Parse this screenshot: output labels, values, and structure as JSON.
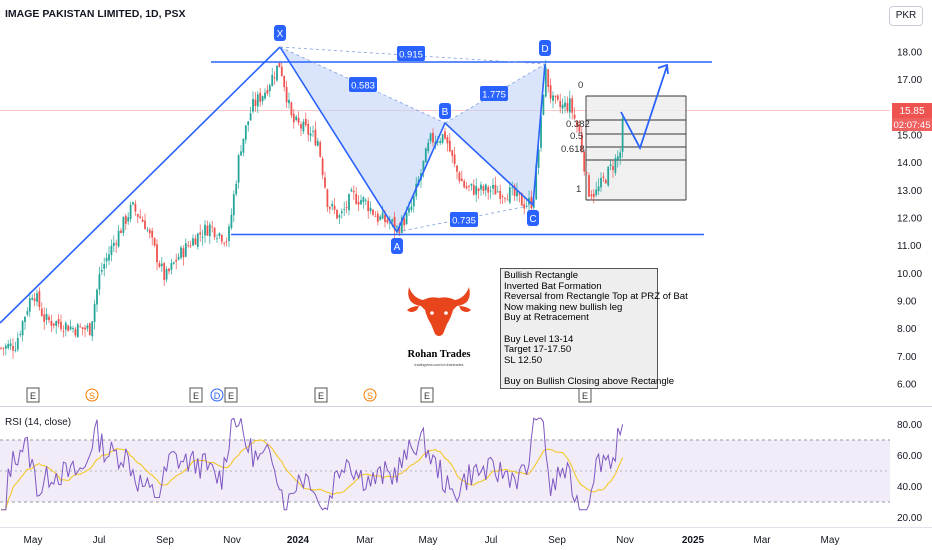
{
  "header": {
    "symbol_title": "IMAGE PAKISTAN LIMITED, 1D, PSX",
    "currency": "PKR"
  },
  "price_labels": {
    "last_price": "15.85",
    "countdown": "02:07:45"
  },
  "rsi_panel": {
    "label": "RSI (14, close)",
    "levels": [
      80,
      60,
      40,
      20
    ]
  },
  "chart_data": {
    "type": "candlestick",
    "y_axis_prices": [
      18.0,
      17.0,
      16.0,
      15.0,
      14.0,
      13.0,
      12.0,
      11.0,
      10.0,
      9.0,
      8.0,
      7.0,
      6.0
    ],
    "y_axis_labels": [
      "18.00",
      "17.00",
      "16.00",
      "15.00",
      "14.00",
      "13.00",
      "12.00",
      "11.00",
      "10.00",
      "9.00",
      "8.00",
      "7.00",
      "6.00"
    ],
    "x_axis_labels": [
      "May",
      "Jul",
      "Sep",
      "Nov",
      "2024",
      "Mar",
      "May",
      "Jul",
      "Sep",
      "Nov",
      "2025",
      "Mar",
      "May"
    ],
    "bold_x_labels": [
      "2024",
      "2025"
    ],
    "last_price": 15.85,
    "pattern_points": [
      {
        "label": "X",
        "price": 18.1
      },
      {
        "label": "A",
        "price": 11.4
      },
      {
        "label": "B",
        "price": 15.3
      },
      {
        "label": "C",
        "price": 12.5
      },
      {
        "label": "D",
        "price": 17.6
      }
    ],
    "pattern_ratios": [
      "0.583",
      "1.775",
      "0.735",
      "0.915"
    ],
    "rectangle_top": 17.6,
    "rectangle_bottom": 11.4,
    "fib_levels": [
      "0",
      "0.382",
      "0.5",
      "0.618",
      "1"
    ],
    "fib_range": [
      17.0,
      12.6
    ],
    "event_markers": [
      "E",
      "S",
      "E",
      "D",
      "E",
      "E",
      "S",
      "E",
      "E"
    ],
    "rsi": {
      "upper": 70,
      "middle": 50,
      "lower": 30
    }
  },
  "annotation": {
    "lines": [
      "Bullish Rectangle",
      "Inverted Bat Formation",
      "Reversal from Rectangle Top at PRZ of Bat",
      "Now making new bullish leg",
      "Buy at Retracement",
      "",
      "Buy Level 13-14",
      "Target 17-17.50",
      "SL 12.50",
      "",
      "Buy on Bullish Closing above Rectangle"
    ]
  },
  "logo": {
    "name": "Rohan Trades",
    "tagline": "tradingview.com/u/rohantrades",
    "color": "#e8451c"
  },
  "colors": {
    "up": "#26a69a",
    "down": "#ef5350",
    "pattern_line": "#2962ff",
    "pattern_fill": "#bcd0f7",
    "rsi_line": "#7e57c2",
    "rsi_ma": "#f5c518"
  }
}
